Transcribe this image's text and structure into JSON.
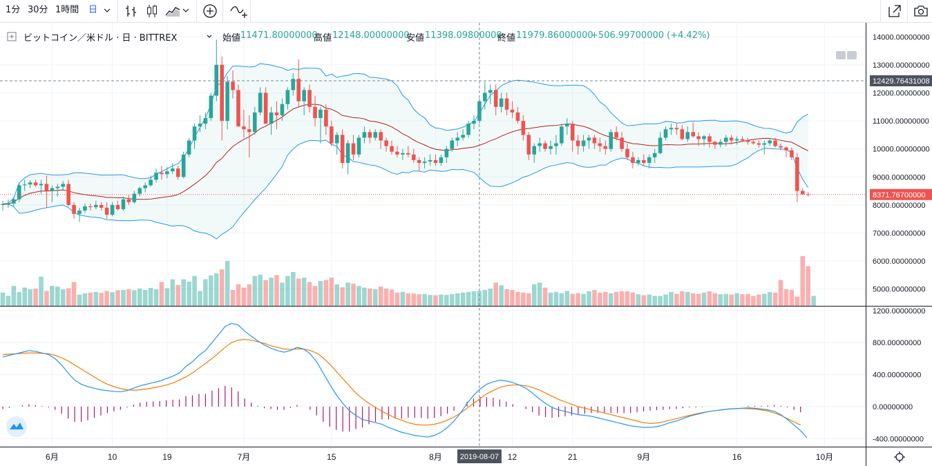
{
  "toolbar": {
    "intervals": [
      "1分",
      "30分",
      "1時間",
      "日"
    ],
    "active_interval": "日",
    "icons": [
      "bar-style-icon",
      "candle-style-icon",
      "area-style-icon",
      "chevron-down-icon",
      "add-indicator-icon",
      "compare-icon",
      "fullscreen-icon",
      "camera-icon"
    ]
  },
  "legend": {
    "symbol": "ビットコイン／米ドル · 日 · BITTREX",
    "open_label": "始値",
    "open_value": "11471.80000000",
    "high_label": "高値",
    "high_value": "12148.00000000",
    "low_label": "安値",
    "low_value": "11398.09800000",
    "close_label": "終値",
    "close_value": "11979.86000000",
    "change": "+506.99700000 (+4.42%)"
  },
  "colors": {
    "up": "#26a69a",
    "down": "#ef5350",
    "bb": "#2196f3",
    "bb_basis": "#b71c1c",
    "macd": "#2196f3",
    "signal": "#f57c00",
    "hist": "#b0156d",
    "last_price": "#ef5350"
  },
  "chart_data": {
    "type": "candlestick",
    "price_axis": {
      "ticks": [
        "14000.00000000",
        "13000.00000000",
        "12000.00000000",
        "11000.00000000",
        "10000.00000000",
        "9000.00000000",
        "8000.00000000",
        "7000.00000000",
        "6000.00000000",
        "5000.00000000"
      ],
      "min": 4400,
      "max": 14500
    },
    "macd_axis": {
      "ticks": [
        "1200.00000000",
        "800.00000000",
        "400.00000000",
        "0.00000000",
        "-400.00000000"
      ],
      "min": -500,
      "max": 1250
    },
    "time_axis": {
      "ticks": [
        "6月",
        "10",
        "19",
        "7月",
        "15",
        "8月",
        "12",
        "21",
        "9月",
        "16",
        "10月"
      ],
      "crosshair_label": "2019-08-07"
    },
    "crosshair_price_label": "12429.76431008",
    "last_price_label": "8371.76700000",
    "candles": [
      [
        8000,
        8150,
        7800,
        8030
      ],
      [
        8030,
        8200,
        7900,
        8050
      ],
      [
        8050,
        8300,
        7950,
        8200
      ],
      [
        8200,
        8800,
        8100,
        8700
      ],
      [
        8700,
        8900,
        8500,
        8730
      ],
      [
        8730,
        8880,
        8600,
        8800
      ],
      [
        8800,
        8900,
        8650,
        8700
      ],
      [
        8700,
        8900,
        8400,
        8750
      ],
      [
        8750,
        9050,
        7900,
        8500
      ],
      [
        8500,
        8700,
        8100,
        8600
      ],
      [
        8600,
        8750,
        8300,
        8650
      ],
      [
        8650,
        8850,
        8500,
        8750
      ],
      [
        8750,
        8900,
        7950,
        8000
      ],
      [
        8000,
        8100,
        7500,
        7680
      ],
      [
        7680,
        7900,
        7400,
        7800
      ],
      [
        7800,
        8050,
        7700,
        7950
      ],
      [
        7950,
        8050,
        7800,
        7920
      ],
      [
        7920,
        8150,
        7850,
        8000
      ],
      [
        8000,
        8100,
        7800,
        7900
      ],
      [
        7900,
        8100,
        7500,
        7650
      ],
      [
        7650,
        8100,
        7600,
        8000
      ],
      [
        8000,
        8150,
        7800,
        7850
      ],
      [
        7850,
        8300,
        7800,
        8200
      ],
      [
        8200,
        8350,
        8000,
        8100
      ],
      [
        8100,
        8500,
        8050,
        8400
      ],
      [
        8400,
        8650,
        8300,
        8600
      ],
      [
        8600,
        8800,
        8450,
        8700
      ],
      [
        8700,
        9050,
        8650,
        8900
      ],
      [
        8900,
        9300,
        8800,
        9150
      ],
      [
        9150,
        9400,
        8900,
        9100
      ],
      [
        9100,
        9350,
        8950,
        9200
      ],
      [
        9200,
        9500,
        9100,
        9300
      ],
      [
        9300,
        9400,
        8900,
        9000
      ],
      [
        9000,
        9900,
        8950,
        9800
      ],
      [
        9800,
        10400,
        9700,
        10300
      ],
      [
        10300,
        10900,
        10000,
        10800
      ],
      [
        10800,
        11200,
        10600,
        10900
      ],
      [
        10900,
        11300,
        10700,
        11100
      ],
      [
        11100,
        12000,
        11000,
        11900
      ],
      [
        11900,
        13900,
        11700,
        13000
      ],
      [
        13000,
        13300,
        10300,
        11000
      ],
      [
        11000,
        12600,
        10700,
        12400
      ],
      [
        12400,
        12800,
        11800,
        12100
      ],
      [
        12100,
        12300,
        10800,
        10800
      ],
      [
        10800,
        11400,
        10400,
        10700
      ],
      [
        10700,
        11200,
        9700,
        10600
      ],
      [
        10600,
        11500,
        10500,
        11300
      ],
      [
        11300,
        12200,
        11200,
        12000
      ],
      [
        12000,
        12200,
        10900,
        10900
      ],
      [
        10900,
        11500,
        10500,
        11300
      ],
      [
        11300,
        11700,
        10700,
        11200
      ],
      [
        11200,
        11800,
        11000,
        11600
      ],
      [
        11600,
        12200,
        11400,
        12100
      ],
      [
        12100,
        12700,
        11900,
        12500
      ],
      [
        12500,
        13200,
        11500,
        11700
      ],
      [
        11700,
        12200,
        11200,
        12100
      ],
      [
        12100,
        12300,
        11300,
        11500
      ],
      [
        11500,
        11900,
        10800,
        11100
      ],
      [
        11100,
        11500,
        10200,
        11400
      ],
      [
        11400,
        11600,
        10500,
        10800
      ],
      [
        10800,
        11000,
        10100,
        10200
      ],
      [
        10200,
        10600,
        9800,
        10500
      ],
      [
        10500,
        10700,
        9300,
        9500
      ],
      [
        9500,
        10300,
        9100,
        10200
      ],
      [
        10200,
        10500,
        9600,
        9800
      ],
      [
        9800,
        10500,
        9700,
        10400
      ],
      [
        10400,
        10800,
        10200,
        10600
      ],
      [
        10600,
        10700,
        10200,
        10400
      ],
      [
        10400,
        10700,
        10300,
        10600
      ],
      [
        10600,
        10700,
        10000,
        10300
      ],
      [
        10300,
        10400,
        9900,
        10100
      ],
      [
        10100,
        10300,
        9800,
        9900
      ],
      [
        9900,
        10100,
        9700,
        9800
      ],
      [
        9800,
        10000,
        9600,
        9850
      ],
      [
        9850,
        10100,
        9700,
        9800
      ],
      [
        9800,
        10000,
        9500,
        9600
      ],
      [
        9600,
        9700,
        9200,
        9500
      ],
      [
        9500,
        9700,
        9300,
        9550
      ],
      [
        9550,
        9800,
        9400,
        9600
      ],
      [
        9600,
        9800,
        9400,
        9500
      ],
      [
        9500,
        9800,
        9400,
        9700
      ],
      [
        9700,
        10100,
        9500,
        10000
      ],
      [
        10000,
        10400,
        9900,
        10300
      ],
      [
        10300,
        10600,
        10100,
        10400
      ],
      [
        10400,
        10700,
        10300,
        10500
      ],
      [
        10500,
        11000,
        10400,
        10900
      ],
      [
        10900,
        11200,
        10700,
        11000
      ],
      [
        11000,
        11800,
        10900,
        11700
      ],
      [
        11700,
        12400,
        11400,
        12000
      ],
      [
        12000,
        12300,
        11600,
        12100
      ],
      [
        12100,
        12300,
        11200,
        11500
      ],
      [
        11500,
        12000,
        11300,
        11800
      ],
      [
        11800,
        12000,
        11200,
        11400
      ],
      [
        11400,
        11700,
        11100,
        11300
      ],
      [
        11300,
        11500,
        10900,
        11000
      ],
      [
        11000,
        11200,
        10300,
        10500
      ],
      [
        10500,
        10600,
        9600,
        9800
      ],
      [
        9800,
        10200,
        9500,
        10100
      ],
      [
        10100,
        10400,
        9900,
        10200
      ],
      [
        10200,
        10300,
        9900,
        10000
      ],
      [
        10000,
        10300,
        9800,
        10100
      ],
      [
        10100,
        10500,
        9800,
        10200
      ],
      [
        10200,
        10900,
        10100,
        10800
      ],
      [
        10800,
        11100,
        10500,
        10900
      ],
      [
        10900,
        11000,
        9900,
        10300
      ],
      [
        10300,
        10500,
        9800,
        10100
      ],
      [
        10100,
        10500,
        9900,
        10300
      ],
      [
        10300,
        10500,
        10000,
        10400
      ],
      [
        10400,
        10500,
        10000,
        10200
      ],
      [
        10200,
        10400,
        9900,
        10100
      ],
      [
        10100,
        10300,
        9800,
        10000
      ],
      [
        10000,
        10700,
        9900,
        10600
      ],
      [
        10600,
        10800,
        10300,
        10400
      ],
      [
        10400,
        10600,
        9900,
        10000
      ],
      [
        10000,
        10200,
        9600,
        9700
      ],
      [
        9700,
        9900,
        9300,
        9500
      ],
      [
        9500,
        9700,
        9400,
        9600
      ],
      [
        9600,
        9800,
        9400,
        9500
      ],
      [
        9500,
        9800,
        9300,
        9700
      ],
      [
        9700,
        10000,
        9500,
        9850
      ],
      [
        9850,
        10600,
        9800,
        10400
      ],
      [
        10400,
        10800,
        10300,
        10700
      ],
      [
        10700,
        10900,
        10500,
        10750
      ],
      [
        10750,
        10900,
        10500,
        10700
      ],
      [
        10700,
        10850,
        10300,
        10350
      ],
      [
        10350,
        10800,
        10250,
        10600
      ],
      [
        10600,
        10950,
        10400,
        10450
      ],
      [
        10450,
        10600,
        10100,
        10350
      ],
      [
        10350,
        10500,
        10100,
        10450
      ],
      [
        10450,
        10550,
        10050,
        10250
      ],
      [
        10250,
        10300,
        10000,
        10150
      ],
      [
        10150,
        10350,
        10050,
        10250
      ],
      [
        10250,
        10500,
        10100,
        10400
      ],
      [
        10400,
        10500,
        10150,
        10300
      ],
      [
        10300,
        10450,
        10150,
        10350
      ],
      [
        10350,
        10450,
        10250,
        10300
      ],
      [
        10300,
        10400,
        10150,
        10250
      ],
      [
        10250,
        10350,
        10150,
        10200
      ],
      [
        10200,
        10300,
        10050,
        10150
      ],
      [
        10150,
        10300,
        9800,
        10200
      ],
      [
        10200,
        10350,
        10100,
        10300
      ],
      [
        10300,
        10400,
        10050,
        10100
      ],
      [
        10100,
        10200,
        9950,
        10050
      ],
      [
        10050,
        10100,
        9700,
        9950
      ],
      [
        9950,
        10050,
        9600,
        9700
      ],
      [
        9700,
        9850,
        8100,
        8500
      ],
      [
        8500,
        8600,
        8350,
        8380
      ],
      [
        8380,
        8450,
        8300,
        8372
      ]
    ],
    "volume": [
      40,
      30,
      60,
      42,
      55,
      50,
      52,
      88,
      45,
      60,
      58,
      50,
      53,
      72,
      34,
      38,
      40,
      42,
      39,
      45,
      41,
      47,
      48,
      50,
      47,
      52,
      48,
      54,
      50,
      72,
      53,
      80,
      63,
      80,
      73,
      90,
      45,
      80,
      92,
      98,
      110,
      135,
      48,
      65,
      55,
      65,
      90,
      94,
      78,
      85,
      93,
      70,
      90,
      102,
      82,
      85,
      72,
      60,
      75,
      78,
      85,
      65,
      56,
      70,
      67,
      60,
      55,
      52,
      50,
      58,
      52,
      49,
      40,
      42,
      38,
      37,
      35,
      36,
      33,
      32,
      34,
      33,
      35,
      38,
      40,
      42,
      44,
      45,
      48,
      52,
      70,
      62,
      50,
      48,
      42,
      40,
      38,
      65,
      70,
      55,
      40,
      42,
      38,
      45,
      36,
      38,
      36,
      44,
      48,
      40,
      42,
      38,
      42,
      44,
      44,
      40,
      35,
      32,
      34,
      30,
      30,
      34,
      42,
      36,
      44,
      42,
      38,
      36,
      40,
      44,
      38,
      35,
      36,
      34,
      38,
      35,
      36,
      30,
      34,
      36,
      42,
      40,
      78,
      50,
      48,
      28,
      150,
      120,
      30
    ],
    "macd_line": [
      620,
      640,
      660,
      680,
      700,
      690,
      670,
      650,
      600,
      520,
      420,
      330,
      280,
      250,
      230,
      210,
      200,
      190,
      185,
      200,
      230,
      260,
      280,
      300,
      320,
      350,
      380,
      420,
      500,
      560,
      640,
      700,
      800,
      900,
      1000,
      1040,
      1020,
      940,
      880,
      820,
      770,
      730,
      700,
      680,
      700,
      740,
      720,
      660,
      560,
      420,
      280,
      150,
      40,
      -50,
      -110,
      -160,
      -180,
      -200,
      -220,
      -260,
      -290,
      -320,
      -340,
      -360,
      -370,
      -380,
      -360,
      -320,
      -260,
      -180,
      -80,
      40,
      140,
      220,
      280,
      310,
      330,
      320,
      300,
      270,
      230,
      170,
      100,
      40,
      -10,
      -40,
      -60,
      -80,
      -100,
      -110,
      -120,
      -140,
      -160,
      -180,
      -200,
      -220,
      -240,
      -250,
      -260,
      -260,
      -250,
      -230,
      -200,
      -180,
      -150,
      -120,
      -100,
      -80,
      -60,
      -50,
      -40,
      -30,
      -25,
      -20,
      -15,
      -20,
      -30,
      -40,
      -60,
      -100,
      -160,
      -230,
      -300,
      -390
    ],
    "signal_line": [
      650,
      655,
      660,
      665,
      670,
      670,
      665,
      660,
      640,
      610,
      570,
      520,
      470,
      420,
      370,
      320,
      280,
      250,
      225,
      210,
      205,
      210,
      220,
      235,
      250,
      270,
      295,
      330,
      370,
      420,
      480,
      540,
      600,
      670,
      740,
      800,
      830,
      840,
      830,
      810,
      790,
      760,
      740,
      720,
      715,
      720,
      720,
      700,
      670,
      610,
      530,
      440,
      350,
      260,
      170,
      100,
      40,
      -10,
      -60,
      -100,
      -140,
      -170,
      -200,
      -220,
      -230,
      -230,
      -220,
      -200,
      -170,
      -130,
      -80,
      -20,
      40,
      100,
      160,
      200,
      240,
      260,
      270,
      270,
      260,
      240,
      210,
      170,
      130,
      90,
      60,
      30,
      0,
      -20,
      -40,
      -60,
      -80,
      -100,
      -120,
      -140,
      -160,
      -180,
      -200,
      -210,
      -205,
      -190,
      -170,
      -150,
      -130,
      -110,
      -90,
      -75,
      -60,
      -50,
      -40,
      -30,
      -25,
      -22,
      -25,
      -30,
      -40,
      -55,
      -80,
      -110,
      -150,
      -190,
      -230
    ]
  }
}
